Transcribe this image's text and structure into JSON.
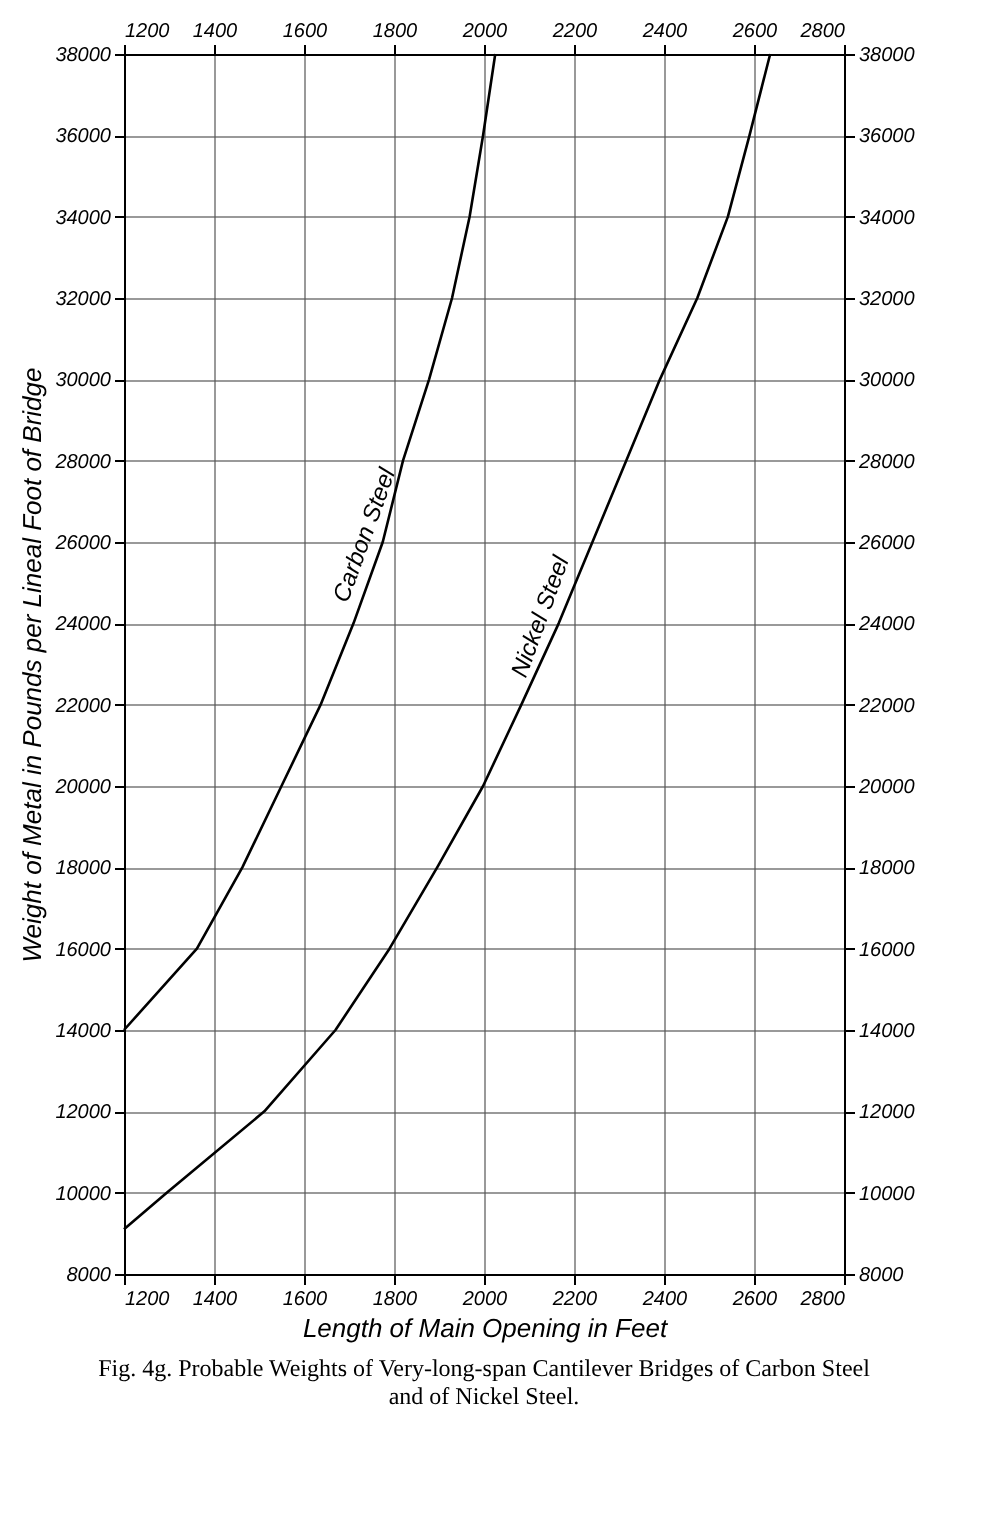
{
  "chart_data": {
    "type": "line",
    "title": "Fig. 4g.  Probable Weights of Very-long-span Cantilever Bridges of Carbon Steel and of Nickel Steel.",
    "xlabel": "Length of Main Opening in Feet",
    "ylabel": "Weight of Metal in Pounds per Lineal Foot of Bridge",
    "series": [
      {
        "name": "Carbon Steel",
        "color": "#000000",
        "x": [
          1200,
          1362,
          1463,
          1550,
          1637,
          1710,
          1775,
          1820,
          1878,
          1929,
          1968,
          1998,
          2025
        ],
        "values": [
          14000,
          16000,
          18000,
          20000,
          22000,
          24000,
          26000,
          28000,
          30000,
          32000,
          34000,
          36000,
          38000
        ]
      },
      {
        "name": "Nickel Steel",
        "color": "#000000",
        "x": [
          1200,
          1295,
          1512,
          1670,
          1790,
          1896,
          1998,
          2083,
          2166,
          2241,
          2316,
          2391,
          2474,
          2542,
          2590,
          2636
        ],
        "values": [
          9100,
          10000,
          12000,
          14000,
          16000,
          18000,
          20000,
          22000,
          24000,
          26000,
          28000,
          30000,
          32000,
          34000,
          36000,
          38000
        ]
      }
    ],
    "xlim": [
      1200,
      2800
    ],
    "xticks": [
      1200,
      1400,
      1600,
      1800,
      2000,
      2200,
      2400,
      2600,
      2800
    ],
    "x2lim": [
      1200,
      2800
    ],
    "x2ticks": [
      1200,
      1400,
      1600,
      1800,
      2000,
      2200,
      2400,
      2600,
      2800
    ],
    "ylim": [
      8000,
      38000
    ],
    "yticks": [
      8000,
      10000,
      12000,
      14000,
      16000,
      18000,
      20000,
      22000,
      24000,
      26000,
      28000,
      30000,
      32000,
      34000,
      36000,
      38000
    ],
    "y2lim": [
      8000,
      38000
    ],
    "y2ticks": [
      8000,
      10000,
      12000,
      14000,
      16000,
      18000,
      20000,
      22000,
      24000,
      26000,
      28000,
      30000,
      32000,
      34000,
      36000,
      38000
    ],
    "grid": true,
    "legend": false,
    "marker": "none",
    "line_style": "solid"
  }
}
